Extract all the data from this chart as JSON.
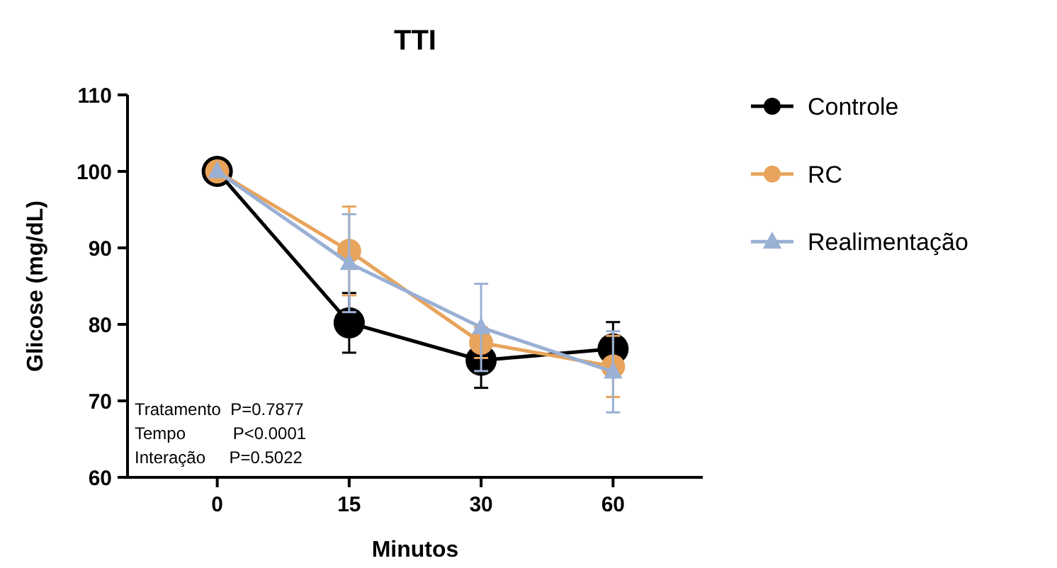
{
  "chart_data": {
    "type": "line",
    "title": "TTI",
    "xlabel": "Minutos",
    "ylabel": "Glicose (mg/dL)",
    "categories": [
      "0",
      "15",
      "30",
      "60"
    ],
    "ylim": [
      60,
      110
    ],
    "yticks": [
      60,
      70,
      80,
      90,
      100,
      110
    ],
    "legend": "right",
    "grid": false,
    "series": [
      {
        "name": "Controle",
        "color": "#000000",
        "marker": "circle",
        "values": [
          100,
          80.2,
          75.3,
          76.8
        ],
        "errors": [
          null,
          3.9,
          3.6,
          3.5
        ]
      },
      {
        "name": "RC",
        "color": "#e8a45c",
        "marker": "circle",
        "values": [
          100,
          89.6,
          77.6,
          74.5
        ],
        "errors": [
          null,
          5.8,
          2,
          4
        ]
      },
      {
        "name": "Realimentação",
        "color": "#9ab0d4",
        "marker": "triangle",
        "values": [
          100,
          88,
          79.6,
          73.8
        ],
        "errors": [
          null,
          6.4,
          5.7,
          5.3
        ]
      }
    ],
    "annotations": [
      "Tratamento  P=0.7877",
      "Tempo          P<0.0001",
      "Interação     P=0.5022"
    ]
  }
}
